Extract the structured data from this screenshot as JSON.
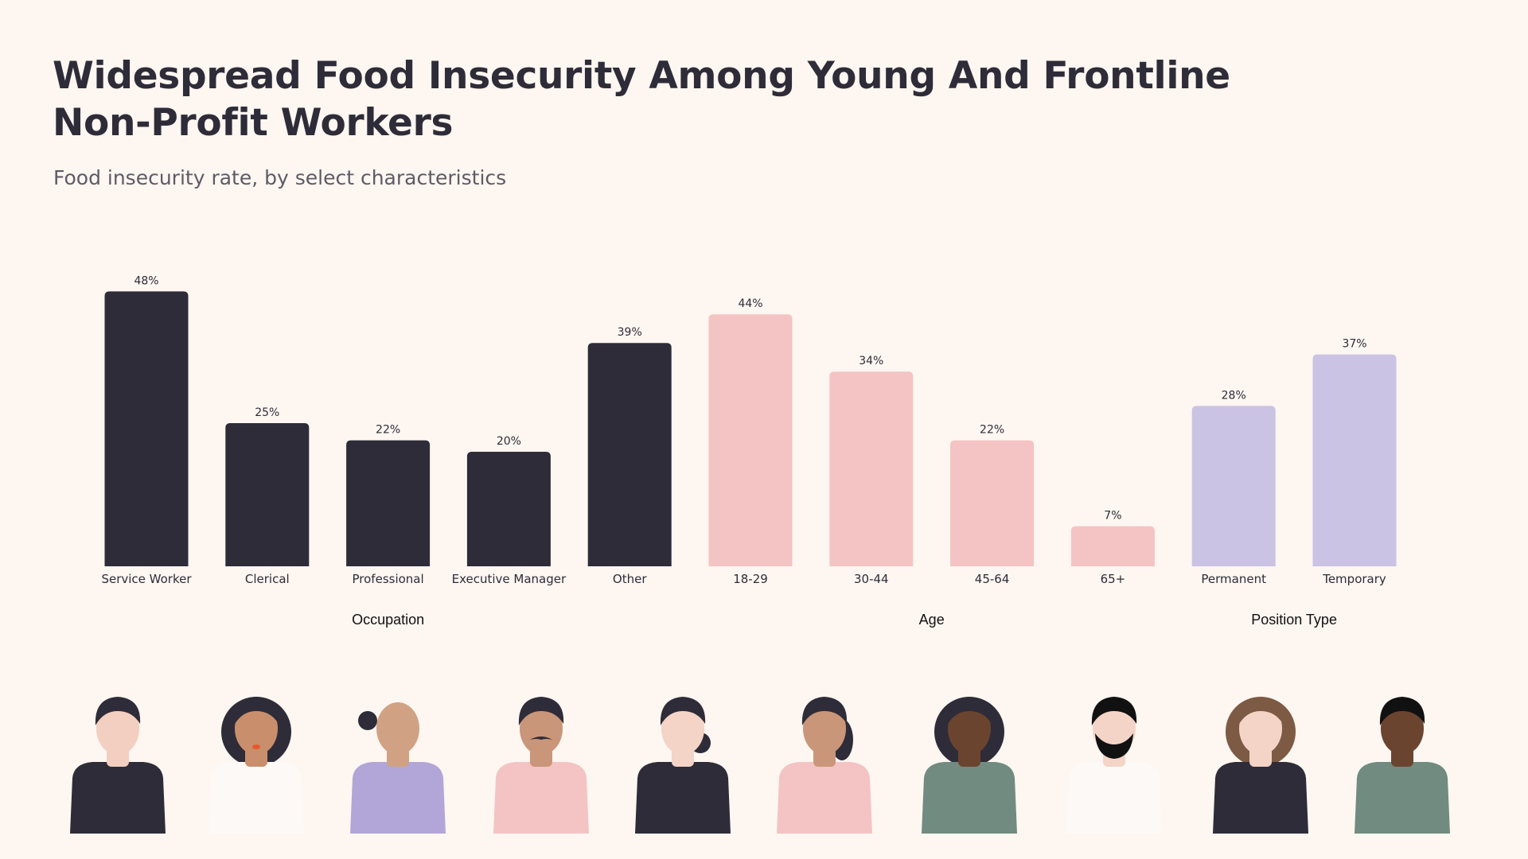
{
  "title": "Widespread Food Insecurity Among Young And Frontline Non-Profit Workers",
  "subtitle": "Food insecurity rate, by select characteristics",
  "colors": {
    "background": "#fdf6f1",
    "occupation": "#2e2c38",
    "age": "#f3c4c3",
    "position_type": "#cbc3e3"
  },
  "chart_data": {
    "type": "bar",
    "title": "Widespread Food Insecurity Among Young And Frontline Non-Profit Workers",
    "subtitle": "Food insecurity rate, by select characteristics",
    "ylim": [
      0,
      50
    ],
    "grid": false,
    "value_format": "{v}%",
    "groups": [
      {
        "name": "Occupation",
        "color": "#2e2c38",
        "categories": [
          "Service Worker",
          "Clerical",
          "Professional",
          "Executive Manager",
          "Other"
        ],
        "values": [
          48,
          25,
          22,
          20,
          39
        ]
      },
      {
        "name": "Age",
        "color": "#f3c4c3",
        "categories": [
          "18-29",
          "30-44",
          "45-64",
          "65+"
        ],
        "values": [
          44,
          34,
          22,
          7
        ]
      },
      {
        "name": "Position Type",
        "color": "#cbc3e3",
        "categories": [
          "Permanent",
          "Temporary"
        ],
        "values": [
          28,
          37
        ]
      }
    ]
  },
  "illustrations": [
    {
      "icon": "man-profile-dark-shirt-icon"
    },
    {
      "icon": "woman-curly-hair-white-shirt-icon"
    },
    {
      "icon": "woman-bun-purple-shirt-icon"
    },
    {
      "icon": "man-mustache-pink-shirt-icon"
    },
    {
      "icon": "woman-bun-dark-shirt-icon"
    },
    {
      "icon": "woman-ponytail-pink-shirt-icon"
    },
    {
      "icon": "man-afro-green-shirt-icon"
    },
    {
      "icon": "man-beard-white-shirt-icon"
    },
    {
      "icon": "woman-curly-hair-dark-shirt-icon"
    },
    {
      "icon": "man-short-curly-green-shirt-icon"
    }
  ]
}
